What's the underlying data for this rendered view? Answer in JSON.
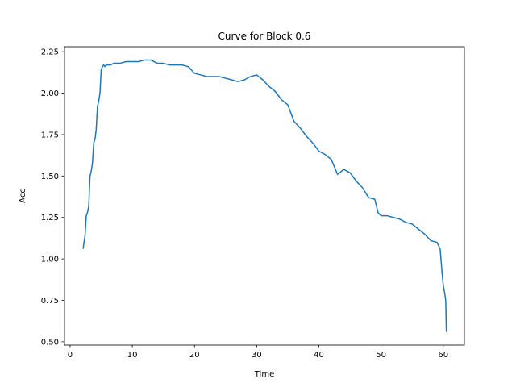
{
  "chart_data": {
    "type": "line",
    "title": "Curve for Block 0.6",
    "xlabel": "Time",
    "ylabel": "Acc",
    "xlim": [
      -0.9,
      63.4
    ],
    "ylim": [
      0.48,
      2.28
    ],
    "xticks": [
      0,
      10,
      20,
      30,
      40,
      50,
      60
    ],
    "xtick_labels": [
      "0",
      "10",
      "20",
      "30",
      "40",
      "50",
      "60"
    ],
    "yticks": [
      0.5,
      0.75,
      1.0,
      1.25,
      1.5,
      1.75,
      2.0,
      2.25
    ],
    "ytick_labels": [
      "0.50",
      "0.75",
      "1.00",
      "1.25",
      "1.50",
      "1.75",
      "2.00",
      "2.25"
    ],
    "grid": false,
    "series": [
      {
        "color": "#1f77b4",
        "x": [
          2.1,
          2.2,
          2.4,
          2.6,
          2.8,
          3.0,
          3.2,
          3.4,
          3.6,
          3.8,
          4.0,
          4.2,
          4.4,
          4.6,
          4.8,
          5.0,
          5.2,
          5.4,
          5.6,
          5.8,
          6.0,
          6.5,
          7.0,
          8.0,
          9.0,
          10.0,
          11.0,
          12.0,
          13.0,
          14.0,
          15.0,
          16.0,
          17.0,
          18.0,
          19.0,
          20.0,
          21.0,
          22.0,
          23.0,
          24.0,
          25.0,
          26.0,
          27.0,
          28.0,
          29.0,
          30.0,
          31.0,
          32.0,
          33.0,
          34.0,
          35.0,
          36.0,
          37.0,
          38.0,
          39.0,
          40.0,
          41.0,
          42.0,
          43.0,
          44.0,
          45.0,
          46.0,
          47.0,
          48.0,
          49.0,
          49.5,
          50.0,
          51.0,
          52.0,
          53.0,
          54.0,
          55.0,
          56.0,
          57.0,
          58.0,
          59.0,
          59.5,
          59.8,
          60.0,
          60.2,
          60.4,
          60.5
        ],
        "y": [
          1.06,
          1.09,
          1.14,
          1.26,
          1.28,
          1.32,
          1.5,
          1.53,
          1.58,
          1.7,
          1.72,
          1.78,
          1.92,
          1.95,
          2.0,
          2.14,
          2.16,
          2.17,
          2.16,
          2.17,
          2.17,
          2.17,
          2.18,
          2.18,
          2.19,
          2.19,
          2.19,
          2.2,
          2.2,
          2.18,
          2.18,
          2.17,
          2.17,
          2.17,
          2.16,
          2.12,
          2.11,
          2.1,
          2.1,
          2.1,
          2.09,
          2.08,
          2.07,
          2.08,
          2.1,
          2.11,
          2.08,
          2.04,
          2.01,
          1.96,
          1.93,
          1.83,
          1.79,
          1.74,
          1.7,
          1.65,
          1.63,
          1.6,
          1.51,
          1.54,
          1.52,
          1.47,
          1.43,
          1.37,
          1.36,
          1.28,
          1.26,
          1.26,
          1.25,
          1.24,
          1.22,
          1.21,
          1.18,
          1.15,
          1.11,
          1.1,
          1.06,
          0.92,
          0.84,
          0.8,
          0.75,
          0.56
        ]
      }
    ]
  }
}
